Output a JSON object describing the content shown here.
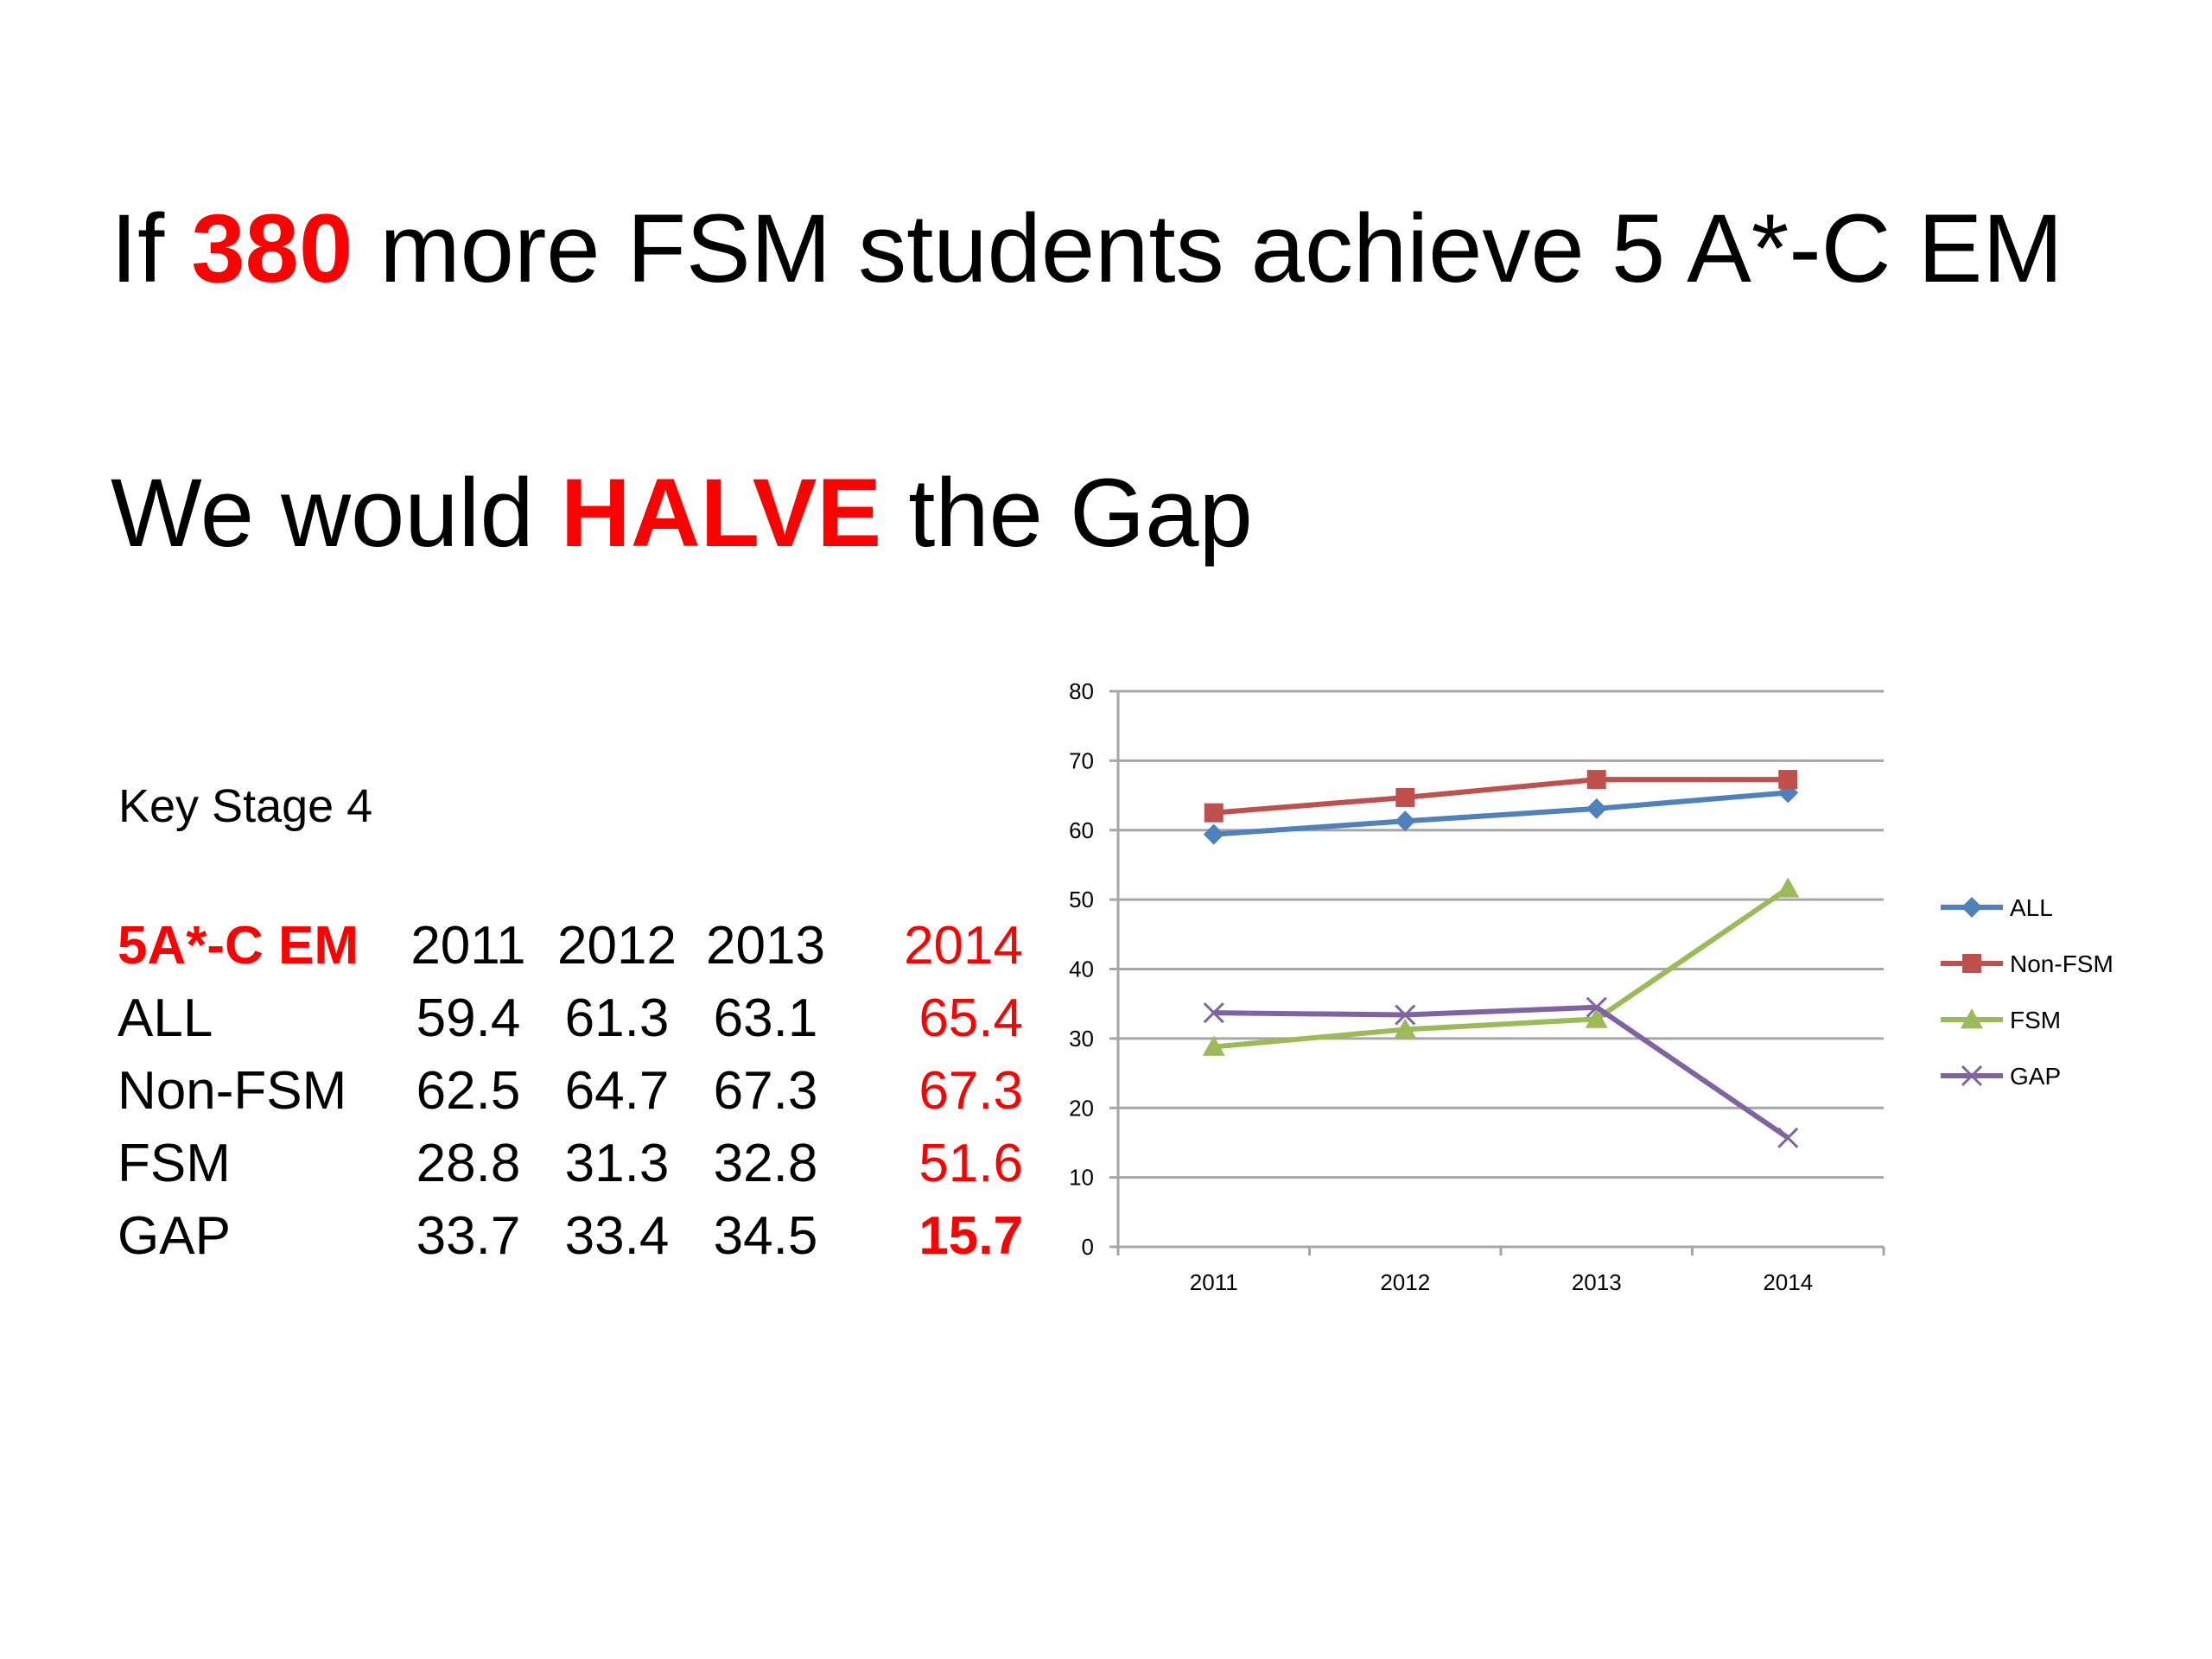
{
  "headline1": {
    "prefix": "If ",
    "emphasis": "380",
    "suffix": " more FSM students achieve 5 A*-C EM"
  },
  "headline2": {
    "prefix": "We would ",
    "emphasis": "HALVE",
    "suffix": " the Gap"
  },
  "table": {
    "caption": "Key Stage 4",
    "header_label": "5A*-C EM",
    "years": [
      "2011",
      "2012",
      "2013",
      "2014"
    ],
    "rows": [
      {
        "label": "ALL",
        "values": [
          "59.4",
          "61.3",
          "63.1",
          "65.4"
        ]
      },
      {
        "label": "Non-FSM",
        "values": [
          "62.5",
          "64.7",
          "67.3",
          "67.3"
        ]
      },
      {
        "label": "FSM",
        "values": [
          "28.8",
          "31.3",
          "32.8",
          "51.6"
        ]
      },
      {
        "label": "GAP",
        "values": [
          "33.7",
          "33.4",
          "34.5",
          "15.7"
        ]
      }
    ]
  },
  "colors": {
    "emphasis": "#ff0000",
    "gridline": "#a6a6a6"
  },
  "chart_data": {
    "type": "line",
    "title": "",
    "xlabel": "",
    "ylabel": "",
    "categories": [
      "2011",
      "2012",
      "2013",
      "2014"
    ],
    "ylim": [
      0,
      80
    ],
    "yticks": [
      "0",
      "10",
      "20",
      "30",
      "40",
      "50",
      "60",
      "70",
      "80"
    ],
    "grid": true,
    "legend_position": "right",
    "series": [
      {
        "name": "ALL",
        "values": [
          59.4,
          61.3,
          63.1,
          65.4
        ],
        "color": "#4f81bd",
        "marker": "diamond"
      },
      {
        "name": "Non-FSM",
        "values": [
          62.5,
          64.7,
          67.3,
          67.3
        ],
        "color": "#c0504d",
        "marker": "square"
      },
      {
        "name": "FSM",
        "values": [
          28.8,
          31.3,
          32.8,
          51.6
        ],
        "color": "#9bbb59",
        "marker": "triangle"
      },
      {
        "name": "GAP",
        "values": [
          33.7,
          33.4,
          34.5,
          15.7
        ],
        "color": "#8064a2",
        "marker": "x"
      }
    ]
  }
}
